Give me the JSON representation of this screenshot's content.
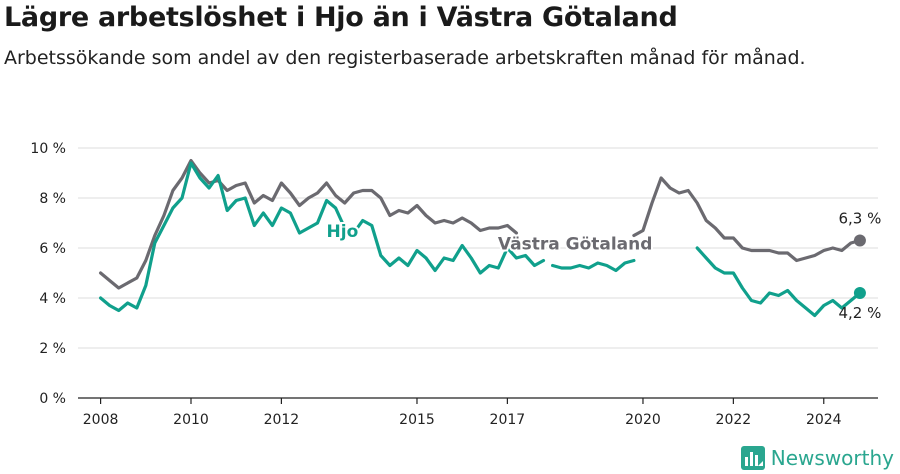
{
  "title": "Lägre arbetslöshet i Hjo än i Västra Götaland",
  "subtitle": "Arbetssökande som andel av den registerbaserade arbetskraften månad för månad.",
  "brand": {
    "name": "Newsworthy"
  },
  "colors": {
    "hjo": "#10a08c",
    "vg": "#6b6a70",
    "grid": "#dcdcdc",
    "axis": "#222222"
  },
  "chart_data": {
    "type": "line",
    "y_ticks": [
      "0 %",
      "2 %",
      "4 %",
      "6 %",
      "8 %",
      "10 %"
    ],
    "y_tick_values": [
      0,
      2,
      4,
      6,
      8,
      10
    ],
    "ylim": [
      0,
      10
    ],
    "xlim": [
      2007.5,
      2025.2
    ],
    "x_ticks": [
      "2008",
      "2010",
      "2012",
      "2015",
      "2017",
      "2020",
      "2022",
      "2024"
    ],
    "x_tick_values": [
      2008,
      2010,
      2012,
      2015,
      2017,
      2020,
      2022,
      2024
    ],
    "grid": true,
    "series": [
      {
        "name": "Västra Götaland",
        "key": "vg",
        "end_label": "6,3 %",
        "segments": [
          [
            [
              2008.0,
              5.0
            ],
            [
              2008.2,
              4.7
            ],
            [
              2008.4,
              4.4
            ],
            [
              2008.6,
              4.6
            ],
            [
              2008.8,
              4.8
            ],
            [
              2009.0,
              5.5
            ],
            [
              2009.2,
              6.5
            ],
            [
              2009.4,
              7.3
            ],
            [
              2009.6,
              8.3
            ],
            [
              2009.8,
              8.8
            ],
            [
              2010.0,
              9.5
            ],
            [
              2010.2,
              9.0
            ],
            [
              2010.4,
              8.6
            ],
            [
              2010.6,
              8.7
            ],
            [
              2010.8,
              8.3
            ],
            [
              2011.0,
              8.5
            ],
            [
              2011.2,
              8.6
            ],
            [
              2011.4,
              7.8
            ],
            [
              2011.6,
              8.1
            ],
            [
              2011.8,
              7.9
            ],
            [
              2012.0,
              8.6
            ],
            [
              2012.2,
              8.2
            ],
            [
              2012.4,
              7.7
            ],
            [
              2012.6,
              8.0
            ],
            [
              2012.8,
              8.2
            ],
            [
              2013.0,
              8.6
            ],
            [
              2013.2,
              8.1
            ],
            [
              2013.4,
              7.8
            ],
            [
              2013.6,
              8.2
            ],
            [
              2013.8,
              8.3
            ],
            [
              2014.0,
              8.3
            ],
            [
              2014.2,
              8.0
            ],
            [
              2014.4,
              7.3
            ],
            [
              2014.6,
              7.5
            ],
            [
              2014.8,
              7.4
            ],
            [
              2015.0,
              7.7
            ],
            [
              2015.2,
              7.3
            ],
            [
              2015.4,
              7.0
            ],
            [
              2015.6,
              7.1
            ],
            [
              2015.8,
              7.0
            ],
            [
              2016.0,
              7.2
            ],
            [
              2016.2,
              7.0
            ],
            [
              2016.4,
              6.7
            ],
            [
              2016.6,
              6.8
            ],
            [
              2016.8,
              6.8
            ],
            [
              2017.0,
              6.9
            ],
            [
              2017.2,
              6.6
            ]
          ],
          [
            [
              2019.8,
              6.5
            ],
            [
              2020.0,
              6.7
            ],
            [
              2020.2,
              7.8
            ],
            [
              2020.4,
              8.8
            ],
            [
              2020.6,
              8.4
            ],
            [
              2020.8,
              8.2
            ],
            [
              2021.0,
              8.3
            ],
            [
              2021.2,
              7.8
            ],
            [
              2021.4,
              7.1
            ],
            [
              2021.6,
              6.8
            ],
            [
              2021.8,
              6.4
            ],
            [
              2022.0,
              6.4
            ],
            [
              2022.2,
              6.0
            ],
            [
              2022.4,
              5.9
            ],
            [
              2022.6,
              5.9
            ],
            [
              2022.8,
              5.9
            ],
            [
              2023.0,
              5.8
            ],
            [
              2023.2,
              5.8
            ],
            [
              2023.4,
              5.5
            ],
            [
              2023.6,
              5.6
            ],
            [
              2023.8,
              5.7
            ],
            [
              2024.0,
              5.9
            ],
            [
              2024.2,
              6.0
            ],
            [
              2024.4,
              5.9
            ],
            [
              2024.6,
              6.2
            ],
            [
              2024.8,
              6.3
            ]
          ]
        ]
      },
      {
        "name": "Hjo",
        "key": "hjo",
        "end_label": "4,2 %",
        "segments": [
          [
            [
              2008.0,
              4.0
            ],
            [
              2008.2,
              3.7
            ],
            [
              2008.4,
              3.5
            ],
            [
              2008.6,
              3.8
            ],
            [
              2008.8,
              3.6
            ],
            [
              2009.0,
              4.5
            ],
            [
              2009.2,
              6.2
            ],
            [
              2009.4,
              6.9
            ],
            [
              2009.6,
              7.6
            ],
            [
              2009.8,
              8.0
            ],
            [
              2010.0,
              9.4
            ],
            [
              2010.2,
              8.8
            ],
            [
              2010.4,
              8.4
            ],
            [
              2010.6,
              8.9
            ],
            [
              2010.8,
              7.5
            ],
            [
              2011.0,
              7.9
            ],
            [
              2011.2,
              8.0
            ],
            [
              2011.4,
              6.9
            ],
            [
              2011.6,
              7.4
            ],
            [
              2011.8,
              6.9
            ],
            [
              2012.0,
              7.6
            ],
            [
              2012.2,
              7.4
            ],
            [
              2012.4,
              6.6
            ],
            [
              2012.6,
              6.8
            ],
            [
              2012.8,
              7.0
            ],
            [
              2013.0,
              7.9
            ],
            [
              2013.2,
              7.6
            ],
            [
              2013.4,
              6.8
            ],
            [
              2013.6,
              6.6
            ],
            [
              2013.8,
              7.1
            ],
            [
              2014.0,
              6.9
            ],
            [
              2014.2,
              5.7
            ],
            [
              2014.4,
              5.3
            ],
            [
              2014.6,
              5.6
            ],
            [
              2014.8,
              5.3
            ],
            [
              2015.0,
              5.9
            ],
            [
              2015.2,
              5.6
            ],
            [
              2015.4,
              5.1
            ],
            [
              2015.6,
              5.6
            ],
            [
              2015.8,
              5.5
            ],
            [
              2016.0,
              6.1
            ],
            [
              2016.2,
              5.6
            ],
            [
              2016.4,
              5.0
            ],
            [
              2016.6,
              5.3
            ],
            [
              2016.8,
              5.2
            ],
            [
              2017.0,
              6.0
            ],
            [
              2017.2,
              5.6
            ],
            [
              2017.4,
              5.7
            ],
            [
              2017.6,
              5.3
            ],
            [
              2017.8,
              5.5
            ]
          ],
          [
            [
              2018.0,
              5.3
            ],
            [
              2018.2,
              5.2
            ],
            [
              2018.4,
              5.2
            ],
            [
              2018.6,
              5.3
            ],
            [
              2018.8,
              5.2
            ],
            [
              2019.0,
              5.4
            ],
            [
              2019.2,
              5.3
            ],
            [
              2019.4,
              5.1
            ],
            [
              2019.6,
              5.4
            ],
            [
              2019.8,
              5.5
            ]
          ],
          [
            [
              2021.2,
              6.0
            ],
            [
              2021.4,
              5.6
            ],
            [
              2021.6,
              5.2
            ],
            [
              2021.8,
              5.0
            ],
            [
              2022.0,
              5.0
            ],
            [
              2022.2,
              4.4
            ],
            [
              2022.4,
              3.9
            ],
            [
              2022.6,
              3.8
            ],
            [
              2022.8,
              4.2
            ],
            [
              2023.0,
              4.1
            ],
            [
              2023.2,
              4.3
            ],
            [
              2023.4,
              3.9
            ],
            [
              2023.6,
              3.6
            ],
            [
              2023.8,
              3.3
            ],
            [
              2024.0,
              3.7
            ],
            [
              2024.2,
              3.9
            ],
            [
              2024.4,
              3.6
            ],
            [
              2024.6,
              3.9
            ],
            [
              2024.8,
              4.2
            ]
          ]
        ]
      }
    ],
    "annotations": [
      {
        "text": "Hjo",
        "series": "hjo",
        "x": 2013.35,
        "y": 6.45
      },
      {
        "text": "Västra Götaland",
        "series": "vg",
        "x": 2018.5,
        "y": 5.95
      }
    ]
  }
}
